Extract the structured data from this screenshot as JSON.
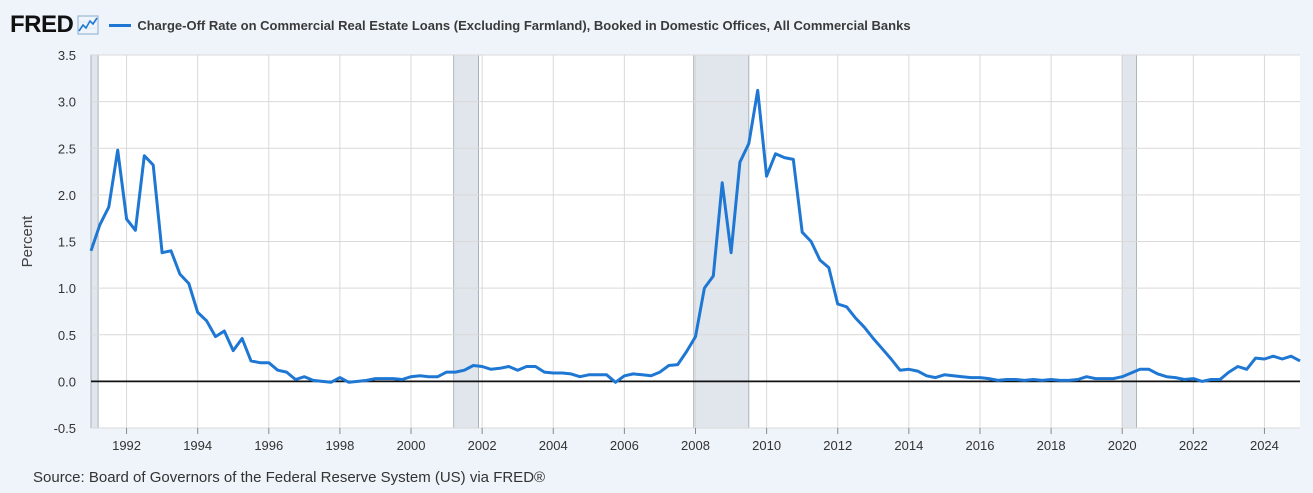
{
  "header": {
    "logo_text": "FRED",
    "logo_icon": "line-chart-icon"
  },
  "source_text": "Source: Board of Governors of the Federal Reserve System (US) via FRED®",
  "colors": {
    "series": "#1f77d4",
    "recession": "#e1e6ec",
    "plot_bg": "#ffffff",
    "page_bg": "#eef4fa",
    "grid": "#d9d9d9"
  },
  "chart_data": {
    "type": "line",
    "title": "",
    "xlabel": "",
    "ylabel": "Percent",
    "ylim": [
      -0.5,
      3.5
    ],
    "xlim": [
      1991.0,
      2025.0
    ],
    "y_ticks": [
      "-0.5",
      "0.0",
      "0.5",
      "1.0",
      "1.5",
      "2.0",
      "2.5",
      "3.0",
      "3.5"
    ],
    "x_ticks": [
      "1992",
      "1994",
      "1996",
      "1998",
      "2000",
      "2002",
      "2004",
      "2006",
      "2008",
      "2010",
      "2012",
      "2014",
      "2016",
      "2018",
      "2020",
      "2022",
      "2024"
    ],
    "grid": true,
    "legend_position": "top-left",
    "recessions": [
      [
        1990.5,
        1991.2
      ],
      [
        2001.2,
        2001.9
      ],
      [
        2007.95,
        2009.5
      ],
      [
        2020.0,
        2020.4
      ]
    ],
    "series": [
      {
        "name": "Charge-Off Rate on Commercial Real Estate Loans (Excluding Farmland), Booked in Domestic Offices, All Commercial Banks",
        "x": [
          1991.0,
          1991.25,
          1991.5,
          1991.75,
          1992.0,
          1992.25,
          1992.5,
          1992.75,
          1993.0,
          1993.25,
          1993.5,
          1993.75,
          1994.0,
          1994.25,
          1994.5,
          1994.75,
          1995.0,
          1995.25,
          1995.5,
          1995.75,
          1996.0,
          1996.25,
          1996.5,
          1996.75,
          1997.0,
          1997.25,
          1997.5,
          1997.75,
          1998.0,
          1998.25,
          1998.5,
          1998.75,
          1999.0,
          1999.25,
          1999.5,
          1999.75,
          2000.0,
          2000.25,
          2000.5,
          2000.75,
          2001.0,
          2001.25,
          2001.5,
          2001.75,
          2002.0,
          2002.25,
          2002.5,
          2002.75,
          2003.0,
          2003.25,
          2003.5,
          2003.75,
          2004.0,
          2004.25,
          2004.5,
          2004.75,
          2005.0,
          2005.25,
          2005.5,
          2005.75,
          2006.0,
          2006.25,
          2006.5,
          2006.75,
          2007.0,
          2007.25,
          2007.5,
          2007.75,
          2008.0,
          2008.25,
          2008.5,
          2008.75,
          2009.0,
          2009.25,
          2009.5,
          2009.75,
          2010.0,
          2010.25,
          2010.5,
          2010.75,
          2011.0,
          2011.25,
          2011.5,
          2011.75,
          2012.0,
          2012.25,
          2012.5,
          2012.75,
          2013.0,
          2013.25,
          2013.5,
          2013.75,
          2014.0,
          2014.25,
          2014.5,
          2014.75,
          2015.0,
          2015.25,
          2015.5,
          2015.75,
          2016.0,
          2016.25,
          2016.5,
          2016.75,
          2017.0,
          2017.25,
          2017.5,
          2017.75,
          2018.0,
          2018.25,
          2018.5,
          2018.75,
          2019.0,
          2019.25,
          2019.5,
          2019.75,
          2020.0,
          2020.25,
          2020.5,
          2020.75,
          2021.0,
          2021.25,
          2021.5,
          2021.75,
          2022.0,
          2022.25,
          2022.5,
          2022.75,
          2023.0,
          2023.25,
          2023.5,
          2023.75,
          2024.0,
          2024.25,
          2024.5,
          2024.75,
          2025.0
        ],
        "y": [
          1.4,
          1.68,
          1.87,
          2.48,
          1.74,
          1.62,
          2.42,
          2.32,
          1.38,
          1.4,
          1.15,
          1.05,
          0.74,
          0.65,
          0.48,
          0.54,
          0.33,
          0.46,
          0.22,
          0.2,
          0.2,
          0.12,
          0.1,
          0.02,
          0.05,
          0.01,
          0.0,
          -0.01,
          0.04,
          -0.01,
          0.0,
          0.01,
          0.03,
          0.03,
          0.03,
          0.02,
          0.05,
          0.06,
          0.05,
          0.05,
          0.1,
          0.1,
          0.12,
          0.17,
          0.16,
          0.13,
          0.14,
          0.16,
          0.12,
          0.16,
          0.16,
          0.1,
          0.09,
          0.09,
          0.08,
          0.05,
          0.07,
          0.07,
          0.07,
          -0.01,
          0.06,
          0.08,
          0.07,
          0.06,
          0.1,
          0.17,
          0.18,
          0.32,
          0.48,
          1.0,
          1.13,
          2.13,
          1.38,
          2.35,
          2.55,
          3.12,
          2.2,
          2.44,
          2.4,
          2.38,
          1.6,
          1.5,
          1.3,
          1.22,
          0.83,
          0.8,
          0.68,
          0.58,
          0.46,
          0.35,
          0.24,
          0.12,
          0.13,
          0.11,
          0.06,
          0.04,
          0.07,
          0.06,
          0.05,
          0.04,
          0.04,
          0.03,
          0.01,
          0.02,
          0.02,
          0.01,
          0.02,
          0.01,
          0.02,
          0.01,
          0.01,
          0.02,
          0.05,
          0.03,
          0.03,
          0.03,
          0.05,
          0.09,
          0.13,
          0.13,
          0.08,
          0.05,
          0.04,
          0.02,
          0.03,
          0.0,
          0.02,
          0.02,
          0.1,
          0.16,
          0.13,
          0.25,
          0.24,
          0.27,
          0.24,
          0.27,
          0.22
        ]
      }
    ]
  }
}
